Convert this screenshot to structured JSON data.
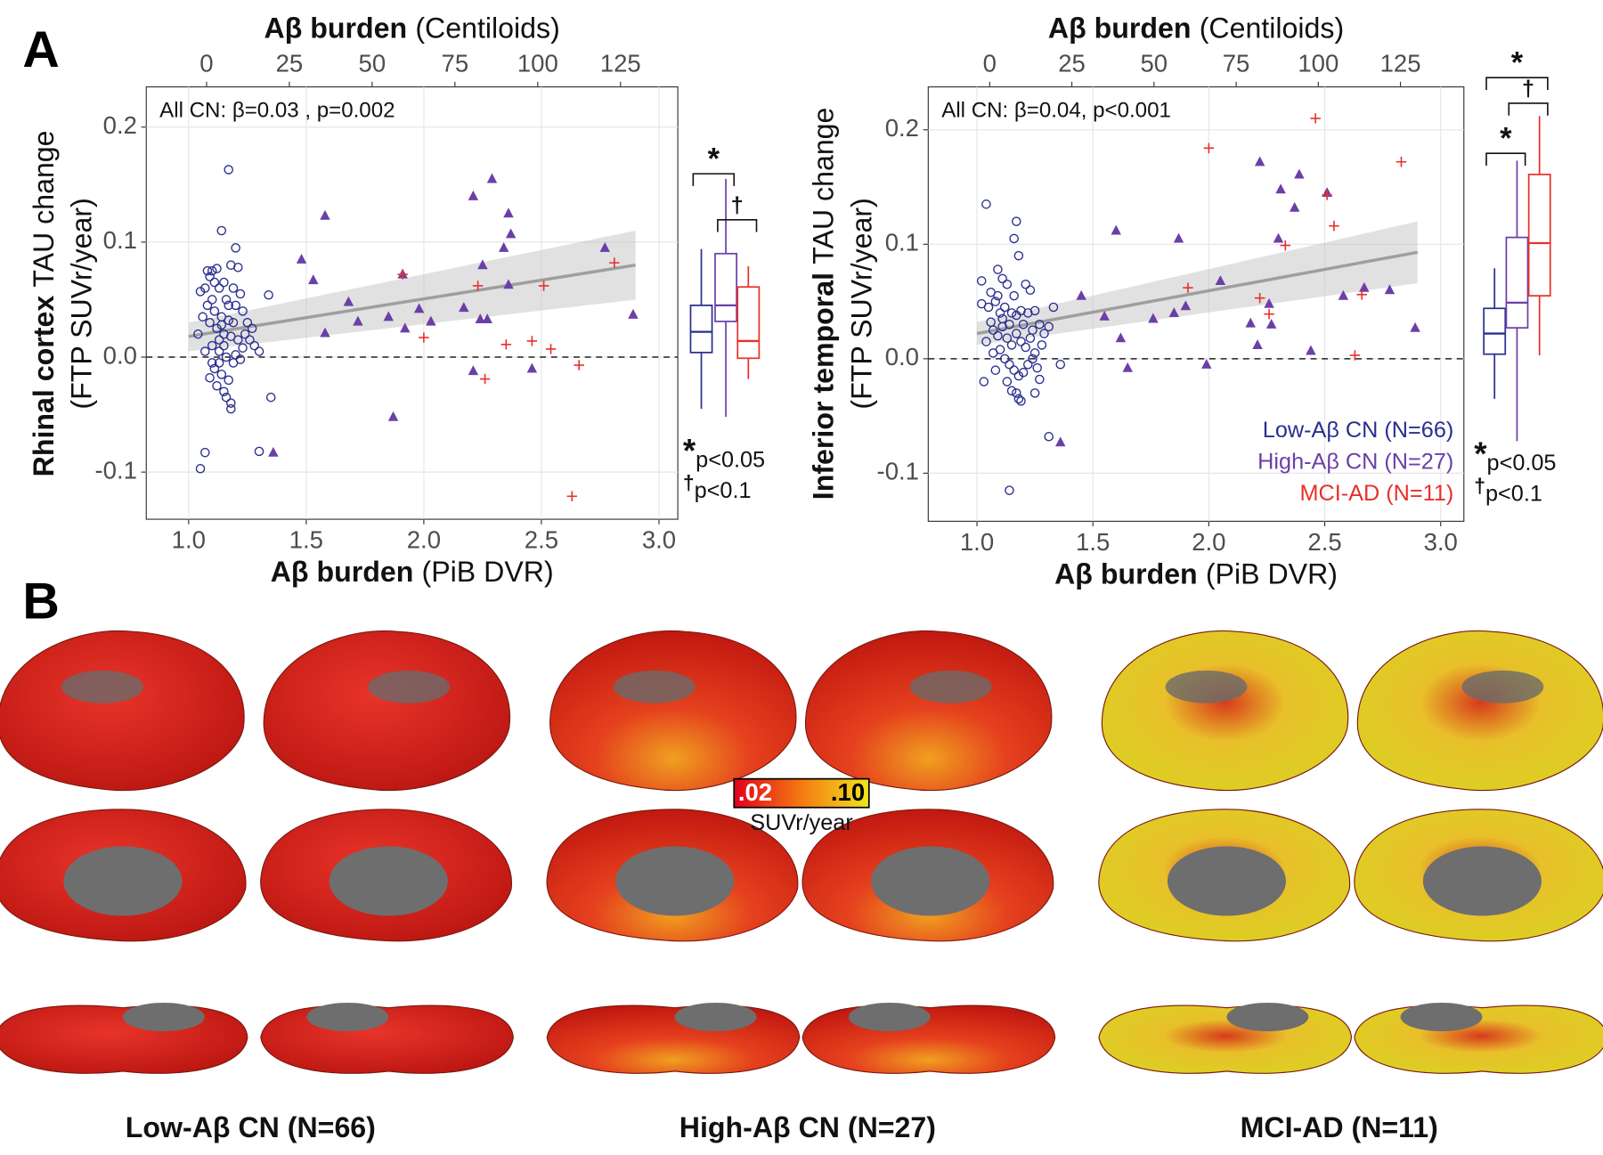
{
  "panel_labels": [
    "A",
    "B"
  ],
  "chart_data": [
    {
      "type": "scatter",
      "x_label": {
        "bold": "Aβ burden",
        "normal": "(PiB DVR)"
      },
      "x2_label": {
        "bold": "Aβ burden",
        "normal": "(Centiloids)"
      },
      "y_label": {
        "bold": "Rhinal cortex",
        "normal": "TAU change",
        "line2": "(FTP SUVr/year)"
      },
      "annotation": "All CN: β=0.03 , p=0.002",
      "xlim": [
        0.82,
        3.08
      ],
      "xticks": [
        {
          "value": 1,
          "label": "1.0"
        },
        1.5,
        {
          "value": 2,
          "label": "2.0"
        },
        2.5,
        {
          "value": 3,
          "label": "3.0"
        }
      ],
      "x2lim": [
        -18.2,
        142.3
      ],
      "x2ticks": [
        0,
        25,
        50,
        75,
        100,
        125
      ],
      "ylim": [
        -0.141,
        0.235
      ],
      "yticks": [
        -0.1,
        {
          "value": 0,
          "label": "0.0"
        },
        0.1,
        0.2
      ],
      "grid": true,
      "hline": 0,
      "fit": {
        "x": [
          1.0,
          2.9
        ],
        "y": [
          0.018,
          0.08
        ],
        "lower": [
          0.005,
          0.05
        ],
        "upper": [
          0.03,
          0.11
        ]
      },
      "series": [
        {
          "marker": "circle",
          "color": "#2b2f8f",
          "x": [
            1.05,
            1.07,
            1.17,
            1.14,
            1.2,
            1.3,
            1.35,
            1.34,
            1.05,
            1.08,
            1.1,
            1.12,
            1.09,
            1.15,
            1.18,
            1.21,
            1.13,
            1.07,
            1.1,
            1.16,
            1.2,
            1.22,
            1.23,
            1.11,
            1.14,
            1.17,
            1.19,
            1.04,
            1.09,
            1.12,
            1.15,
            1.18,
            1.21,
            1.24,
            1.26,
            1.28,
            1.3,
            1.25,
            1.27,
            1.07,
            1.1,
            1.13,
            1.16,
            1.19,
            1.22,
            1.23,
            1.11,
            1.14,
            1.17,
            1.09,
            1.12,
            1.15,
            1.18,
            1.18,
            1.16,
            1.13,
            1.2,
            1.06,
            1.08,
            1.11,
            1.13,
            1.15,
            1.17,
            1.19,
            1.1,
            1.14
          ],
          "values": [
            -0.097,
            -0.083,
            0.163,
            0.11,
            0.095,
            -0.082,
            -0.035,
            0.054,
            0.057,
            0.075,
            0.075,
            0.077,
            0.07,
            0.065,
            0.08,
            0.078,
            0.06,
            0.06,
            0.05,
            0.05,
            0.045,
            0.055,
            0.04,
            0.04,
            0.035,
            0.032,
            0.03,
            0.02,
            0.03,
            0.025,
            0.02,
            0.018,
            0.015,
            0.02,
            0.015,
            0.01,
            0.005,
            0.03,
            0.025,
            0.005,
            0.01,
            0.005,
            0.0,
            -0.005,
            -0.002,
            0.008,
            -0.01,
            -0.015,
            -0.02,
            -0.018,
            -0.025,
            -0.03,
            -0.04,
            -0.045,
            -0.035,
            -0.005,
            0.002,
            0.035,
            0.045,
            0.065,
            0.015,
            0.01,
            0.045,
            0.06,
            -0.005,
            0.028
          ]
        },
        {
          "marker": "triangle",
          "color": "#6b3fa8",
          "x": [
            1.36,
            1.48,
            1.53,
            1.58,
            1.58,
            1.68,
            1.72,
            1.85,
            1.87,
            1.91,
            1.92,
            1.98,
            2.03,
            2.17,
            2.21,
            2.21,
            2.24,
            2.25,
            2.29,
            2.27,
            2.34,
            2.36,
            2.36,
            2.37,
            2.46,
            2.89,
            2.77
          ],
          "values": [
            -0.083,
            0.085,
            0.067,
            0.123,
            0.021,
            0.048,
            0.031,
            0.035,
            -0.052,
            0.072,
            0.025,
            0.042,
            0.031,
            0.043,
            0.14,
            -0.012,
            0.033,
            0.08,
            0.155,
            0.033,
            0.095,
            0.063,
            0.125,
            0.107,
            -0.01,
            0.037,
            0.095
          ]
        },
        {
          "marker": "plus",
          "color": "#e8312b",
          "x": [
            1.91,
            2.0,
            2.23,
            2.26,
            2.35,
            2.46,
            2.51,
            2.54,
            2.63,
            2.66,
            2.81
          ],
          "values": [
            0.072,
            0.017,
            0.062,
            -0.019,
            0.011,
            0.014,
            0.062,
            0.007,
            -0.121,
            -0.007,
            0.082
          ]
        }
      ],
      "boxes": [
        {
          "low": -0.045,
          "q1": 0.004,
          "median": 0.022,
          "q3": 0.045,
          "high": 0.094
        },
        {
          "low": -0.052,
          "q1": 0.031,
          "median": 0.045,
          "q3": 0.09,
          "high": 0.155
        },
        {
          "low": -0.019,
          "q1": -0.001,
          "median": 0.014,
          "q3": 0.061,
          "high": 0.079
        }
      ],
      "brackets": [
        "*",
        "†"
      ],
      "footnotes": [
        {
          "symbol": "*",
          "text": "p<0.05"
        },
        {
          "symbol": "†",
          "text": "p<0.1"
        }
      ]
    },
    {
      "type": "scatter",
      "x_label": {
        "bold": "Aβ burden",
        "normal": "(PiB DVR)"
      },
      "x2_label": {
        "bold": "Aβ burden",
        "normal": "(Centiloids)"
      },
      "y_label": {
        "bold": "Inferior temporal",
        "normal": "TAU change",
        "line2": "(FTP SUVr/year)"
      },
      "annotation": "All CN: β=0.04, p<0.001",
      "xlim": [
        0.79,
        3.1
      ],
      "xticks": [
        {
          "value": 1,
          "label": "1.0"
        },
        1.5,
        {
          "value": 2,
          "label": "2.0"
        },
        2.5,
        {
          "value": 3,
          "label": "3.0"
        }
      ],
      "x2lim": [
        -18.7,
        144.3
      ],
      "x2ticks": [
        0,
        25,
        50,
        75,
        100,
        125
      ],
      "ylim": [
        -0.142,
        0.2375
      ],
      "yticks": [
        -0.1,
        {
          "value": 0,
          "label": "0.0"
        },
        0.1,
        0.2
      ],
      "grid": true,
      "hline": 0,
      "legend": "lower right",
      "fit": {
        "x": [
          1.0,
          2.9
        ],
        "y": [
          0.022,
          0.093
        ],
        "lower": [
          0.012,
          0.066
        ],
        "upper": [
          0.032,
          0.12
        ]
      },
      "series": [
        {
          "name": "Low-Aβ CN (N=66)",
          "marker": "circle",
          "color": "#2b2f8f",
          "x": [
            1.04,
            1.02,
            1.06,
            1.09,
            1.11,
            1.13,
            1.16,
            1.17,
            1.18,
            1.21,
            1.23,
            1.02,
            1.05,
            1.08,
            1.1,
            1.12,
            1.15,
            1.17,
            1.19,
            1.22,
            1.25,
            1.27,
            1.29,
            1.31,
            1.33,
            1.04,
            1.07,
            1.09,
            1.11,
            1.13,
            1.15,
            1.17,
            1.19,
            1.21,
            1.23,
            1.25,
            1.07,
            1.1,
            1.12,
            1.14,
            1.16,
            1.18,
            1.2,
            1.22,
            1.24,
            1.26,
            1.03,
            1.08,
            1.13,
            1.15,
            1.17,
            1.18,
            1.19,
            1.25,
            1.14,
            1.31,
            1.36,
            1.27,
            1.11,
            1.14,
            1.2,
            1.24,
            1.06,
            1.16,
            1.28,
            1.09
          ],
          "values": [
            0.135,
            0.068,
            0.058,
            0.078,
            0.07,
            0.065,
            0.105,
            0.12,
            0.09,
            0.065,
            0.06,
            0.048,
            0.045,
            0.05,
            0.04,
            0.045,
            0.04,
            0.038,
            0.042,
            0.04,
            0.042,
            0.03,
            0.022,
            0.028,
            0.045,
            0.015,
            0.025,
            0.02,
            0.028,
            0.018,
            0.012,
            0.022,
            0.015,
            0.01,
            0.018,
            0.005,
            0.005,
            0.008,
            0.0,
            -0.005,
            -0.01,
            -0.015,
            -0.012,
            -0.005,
            0.0,
            -0.008,
            -0.02,
            -0.01,
            -0.02,
            -0.028,
            -0.03,
            -0.035,
            -0.037,
            -0.03,
            -0.115,
            -0.068,
            -0.005,
            -0.018,
            0.035,
            0.03,
            0.03,
            0.025,
            0.032,
            0.055,
            0.012,
            0.055
          ]
        },
        {
          "name": "High-Aβ CN (N=27)",
          "marker": "triangle",
          "color": "#6b3fa8",
          "x": [
            1.36,
            1.45,
            1.55,
            1.6,
            1.62,
            1.65,
            1.76,
            1.85,
            1.87,
            1.9,
            1.99,
            2.05,
            2.18,
            2.22,
            2.21,
            2.26,
            2.27,
            2.3,
            2.31,
            2.37,
            2.39,
            2.44,
            2.51,
            2.58,
            2.67,
            2.78,
            2.89
          ],
          "values": [
            -0.073,
            0.055,
            0.037,
            0.112,
            0.018,
            -0.008,
            0.035,
            0.04,
            0.105,
            0.046,
            -0.005,
            0.068,
            0.031,
            0.172,
            0.012,
            0.048,
            0.03,
            0.105,
            0.148,
            0.132,
            0.161,
            0.007,
            0.145,
            0.055,
            0.062,
            0.06,
            0.027
          ]
        },
        {
          "name": "MCI-AD (N=11)",
          "marker": "plus",
          "color": "#e8312b",
          "x": [
            1.91,
            2.0,
            2.22,
            2.26,
            2.33,
            2.46,
            2.51,
            2.54,
            2.63,
            2.66,
            2.83
          ],
          "values": [
            0.062,
            0.184,
            0.053,
            0.039,
            0.099,
            0.21,
            0.143,
            0.116,
            0.003,
            0.056,
            0.172
          ]
        }
      ],
      "boxes": [
        {
          "low": -0.035,
          "q1": 0.004,
          "median": 0.022,
          "q3": 0.044,
          "high": 0.079
        },
        {
          "low": -0.072,
          "q1": 0.027,
          "median": 0.049,
          "q3": 0.106,
          "high": 0.173
        },
        {
          "low": 0.003,
          "q1": 0.055,
          "median": 0.101,
          "q3": 0.161,
          "high": 0.212
        }
      ],
      "brackets": [
        "*",
        "†",
        "*"
      ],
      "footnotes": [
        {
          "symbol": "*",
          "text": "p<0.05"
        },
        {
          "symbol": "†",
          "text": "p<0.1"
        }
      ]
    }
  ],
  "brain_groups": [
    "Low-Aβ CN (N=66)",
    "High-Aβ CN (N=27)",
    "MCI-AD (N=11)"
  ],
  "colorbar": {
    "title": "SUVr/year",
    "ticks": [
      {
        "value": 0.02,
        "label": ".02"
      },
      {
        "value": 0.1,
        "label": ".10"
      }
    ]
  }
}
